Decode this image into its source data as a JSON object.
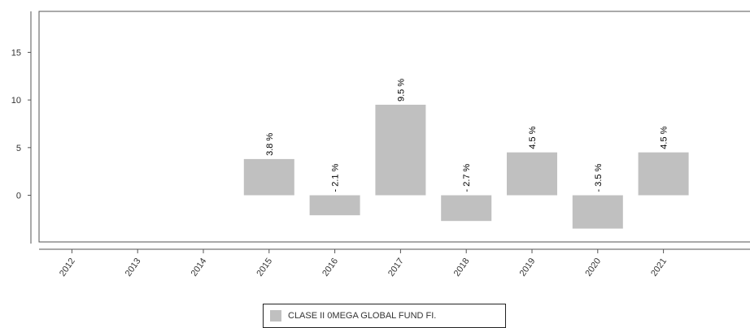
{
  "chart_data": {
    "type": "bar",
    "categories": [
      "2012",
      "2013",
      "2014",
      "2015",
      "2016",
      "2017",
      "2018",
      "2019",
      "2020",
      "2021"
    ],
    "series": [
      {
        "name": "CLASE II 0MEGA GLOBAL FUND FI.",
        "values": [
          null,
          null,
          null,
          3.8,
          -2.1,
          9.5,
          -2.7,
          4.5,
          -3.5,
          4.5
        ],
        "labels": [
          "",
          "",
          "",
          "3.8 %",
          "- 2.1 %",
          "9.5 %",
          "- 2.7 %",
          "4.5 %",
          "- 3.5 %",
          "4.5 %"
        ]
      }
    ],
    "yticks": [
      0,
      5,
      10,
      15
    ],
    "ylim": [
      -4.9,
      19.3
    ],
    "grid": false,
    "legend_position": "bottom",
    "colors": {
      "bar": "#c0c0c0",
      "axis": "#555555",
      "frame": "#555555"
    }
  }
}
